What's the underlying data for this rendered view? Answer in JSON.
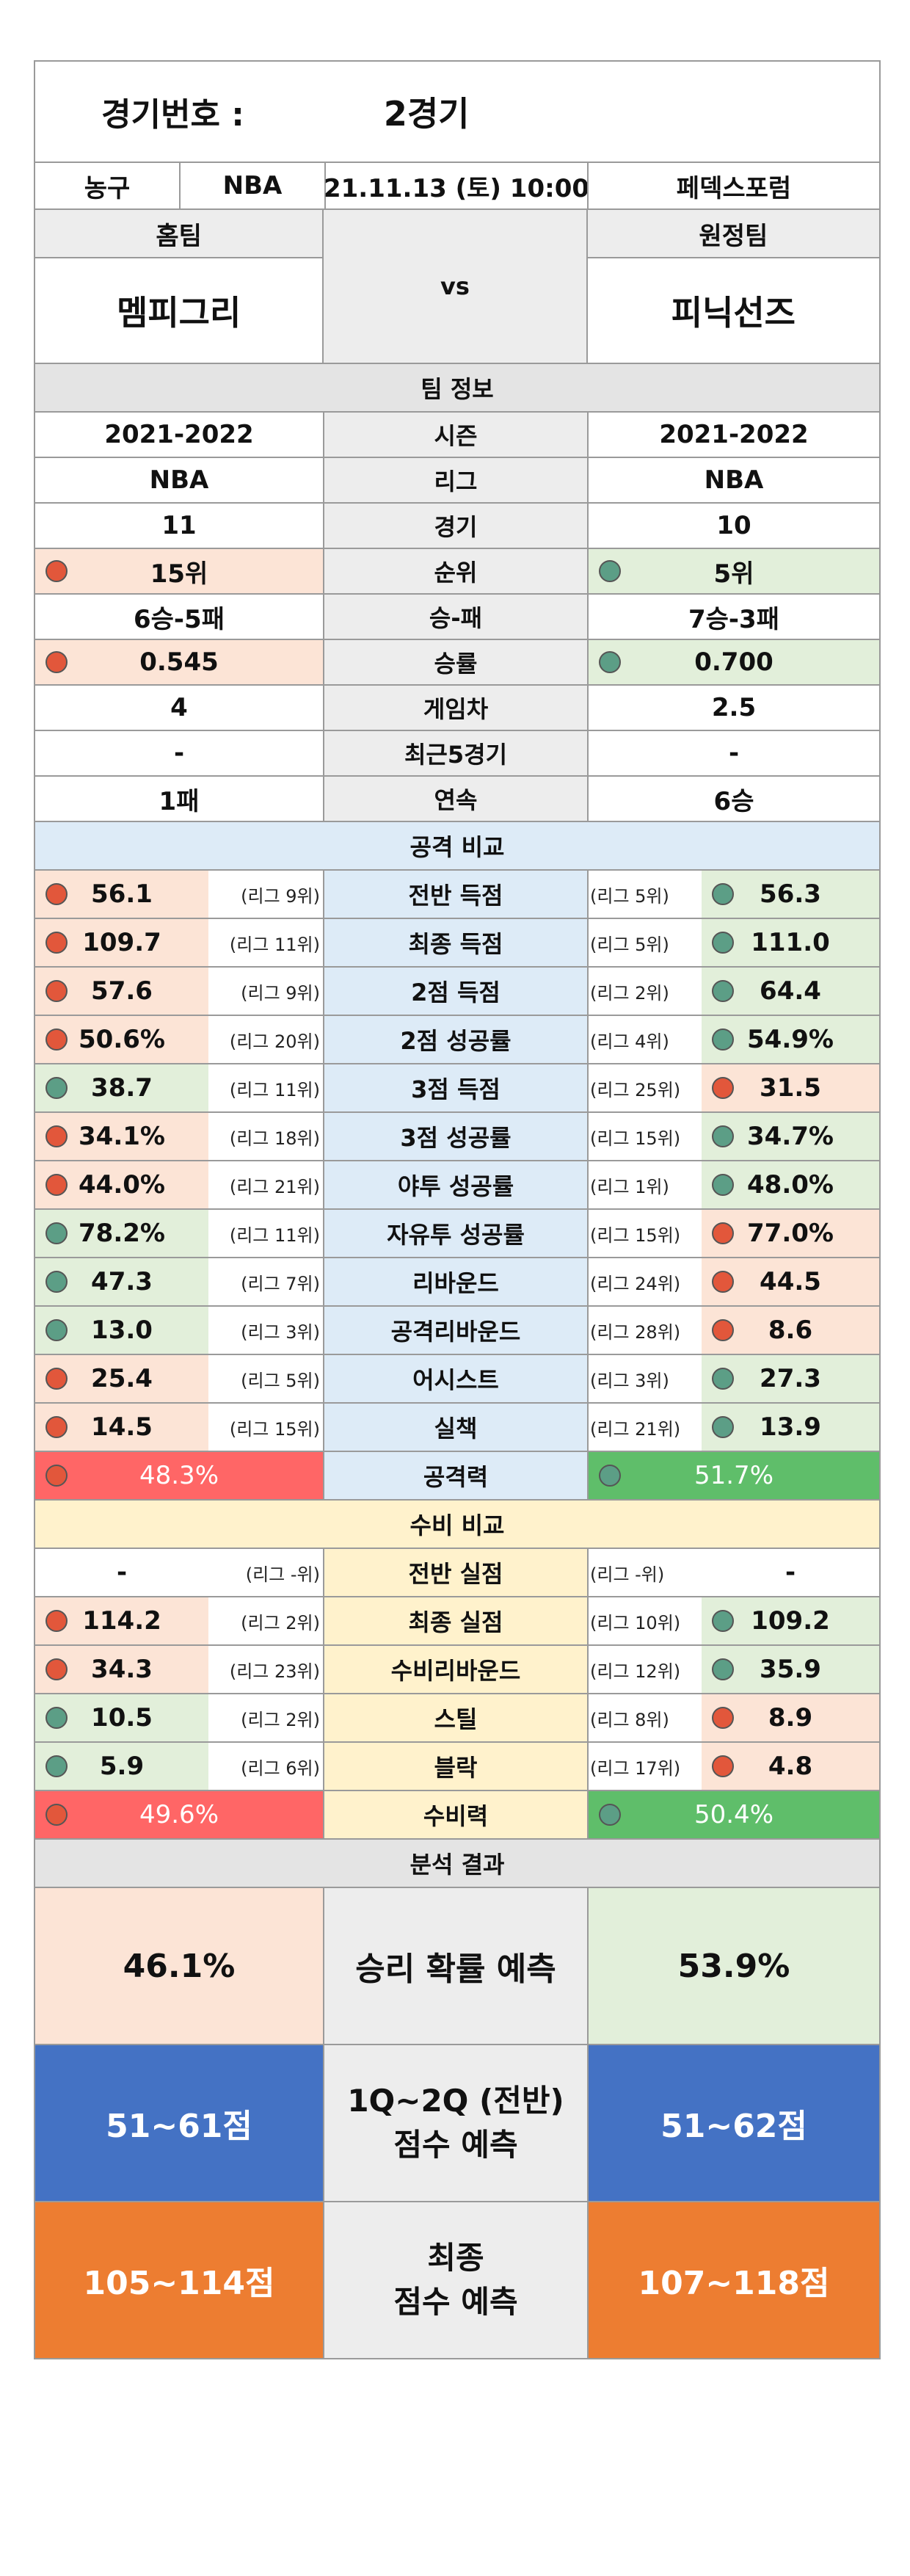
{
  "header": {
    "label": "경기번호 :",
    "game_no": "2경기",
    "sport": "농구",
    "league": "NBA",
    "datetime": "21.11.13 (토) 10:00",
    "venue": "페덱스포럼"
  },
  "teams": {
    "home_label": "홈팀",
    "away_label": "원정팀",
    "vs": "vs",
    "home": "멤피그리",
    "away": "피닉선즈"
  },
  "team_info": {
    "title": "팀 정보",
    "rows": [
      {
        "label": "시즌",
        "home": "2021-2022",
        "away": "2021-2022"
      },
      {
        "label": "리그",
        "home": "NBA",
        "away": "NBA"
      },
      {
        "label": "경기",
        "home": "11",
        "away": "10"
      },
      {
        "label": "순위",
        "home": "15위",
        "away": "5위",
        "home_dot": "red",
        "away_dot": "green"
      },
      {
        "label": "승-패",
        "home": "6승-5패",
        "away": "7승-3패"
      },
      {
        "label": "승률",
        "home": "0.545",
        "away": "0.700",
        "home_dot": "red",
        "away_dot": "green"
      },
      {
        "label": "게임차",
        "home": "4",
        "away": "2.5"
      },
      {
        "label": "최근5경기",
        "home": "-",
        "away": "-"
      },
      {
        "label": "연속",
        "home": "1패",
        "away": "6승"
      }
    ]
  },
  "offense": {
    "title": "공격 비교",
    "rows": [
      {
        "label": "전반 득점",
        "home": "56.1",
        "home_rank": "(리그 9위)",
        "away": "56.3",
        "away_rank": "(리그 5위)",
        "home_dot": "red",
        "away_dot": "green"
      },
      {
        "label": "최종 득점",
        "home": "109.7",
        "home_rank": "(리그 11위)",
        "away": "111.0",
        "away_rank": "(리그 5위)",
        "home_dot": "red",
        "away_dot": "green"
      },
      {
        "label": "2점 득점",
        "home": "57.6",
        "home_rank": "(리그 9위)",
        "away": "64.4",
        "away_rank": "(리그 2위)",
        "home_dot": "red",
        "away_dot": "green"
      },
      {
        "label": "2점 성공률",
        "home": "50.6%",
        "home_rank": "(리그 20위)",
        "away": "54.9%",
        "away_rank": "(리그 4위)",
        "home_dot": "red",
        "away_dot": "green"
      },
      {
        "label": "3점 득점",
        "home": "38.7",
        "home_rank": "(리그 11위)",
        "away": "31.5",
        "away_rank": "(리그 25위)",
        "home_dot": "green",
        "away_dot": "red"
      },
      {
        "label": "3점 성공률",
        "home": "34.1%",
        "home_rank": "(리그 18위)",
        "away": "34.7%",
        "away_rank": "(리그 15위)",
        "home_dot": "red",
        "away_dot": "green"
      },
      {
        "label": "야투 성공률",
        "home": "44.0%",
        "home_rank": "(리그 21위)",
        "away": "48.0%",
        "away_rank": "(리그 1위)",
        "home_dot": "red",
        "away_dot": "green"
      },
      {
        "label": "자유투 성공률",
        "home": "78.2%",
        "home_rank": "(리그 11위)",
        "away": "77.0%",
        "away_rank": "(리그 15위)",
        "home_dot": "green",
        "away_dot": "red"
      },
      {
        "label": "리바운드",
        "home": "47.3",
        "home_rank": "(리그 7위)",
        "away": "44.5",
        "away_rank": "(리그 24위)",
        "home_dot": "green",
        "away_dot": "red"
      },
      {
        "label": "공격리바운드",
        "home": "13.0",
        "home_rank": "(리그 3위)",
        "away": "8.6",
        "away_rank": "(리그 28위)",
        "home_dot": "green",
        "away_dot": "red"
      },
      {
        "label": "어시스트",
        "home": "25.4",
        "home_rank": "(리그 5위)",
        "away": "27.3",
        "away_rank": "(리그 3위)",
        "home_dot": "red",
        "away_dot": "green"
      },
      {
        "label": "실책",
        "home": "14.5",
        "home_rank": "(리그 15위)",
        "away": "13.9",
        "away_rank": "(리그 21위)",
        "home_dot": "red",
        "away_dot": "green"
      }
    ],
    "total": {
      "label": "공격력",
      "home": "48.3%",
      "away": "51.7%"
    }
  },
  "defense": {
    "title": "수비 비교",
    "rows": [
      {
        "label": "전반 실점",
        "home": "-",
        "home_rank": "(리그 -위)",
        "away": "-",
        "away_rank": "(리그 -위)",
        "home_dot": "",
        "away_dot": ""
      },
      {
        "label": "최종 실점",
        "home": "114.2",
        "home_rank": "(리그 2위)",
        "away": "109.2",
        "away_rank": "(리그 10위)",
        "home_dot": "red",
        "away_dot": "green"
      },
      {
        "label": "수비리바운드",
        "home": "34.3",
        "home_rank": "(리그 23위)",
        "away": "35.9",
        "away_rank": "(리그 12위)",
        "home_dot": "red",
        "away_dot": "green"
      },
      {
        "label": "스틸",
        "home": "10.5",
        "home_rank": "(리그 2위)",
        "away": "8.9",
        "away_rank": "(리그 8위)",
        "home_dot": "green",
        "away_dot": "red"
      },
      {
        "label": "블락",
        "home": "5.9",
        "home_rank": "(리그 6위)",
        "away": "4.8",
        "away_rank": "(리그 17위)",
        "home_dot": "green",
        "away_dot": "red"
      }
    ],
    "total": {
      "label": "수비력",
      "home": "49.6%",
      "away": "50.4%"
    }
  },
  "analysis": {
    "title": "분석 결과",
    "win_label": "승리 확률 예측",
    "win_home": "46.1%",
    "win_away": "53.9%",
    "half_label_1": "1Q~2Q (전반)",
    "half_label_2": "점수 예측",
    "half_home": "51~61점",
    "half_away": "51~62점",
    "final_label_1": "최종",
    "final_label_2": "점수 예측",
    "final_home": "105~114점",
    "final_away": "107~118점"
  },
  "colors": {
    "dot_red": "#e2573b",
    "dot_green": "#5c9e86",
    "home_better_bg": "#e2efda",
    "home_worse_bg": "#fce4d6",
    "offense_bg": "#ddebf7",
    "defense_bg": "#fff2cc",
    "total_red": "#ff6666",
    "total_green": "#5fbe6a",
    "half_blue": "#4472c4",
    "final_orange": "#ed7d31"
  }
}
